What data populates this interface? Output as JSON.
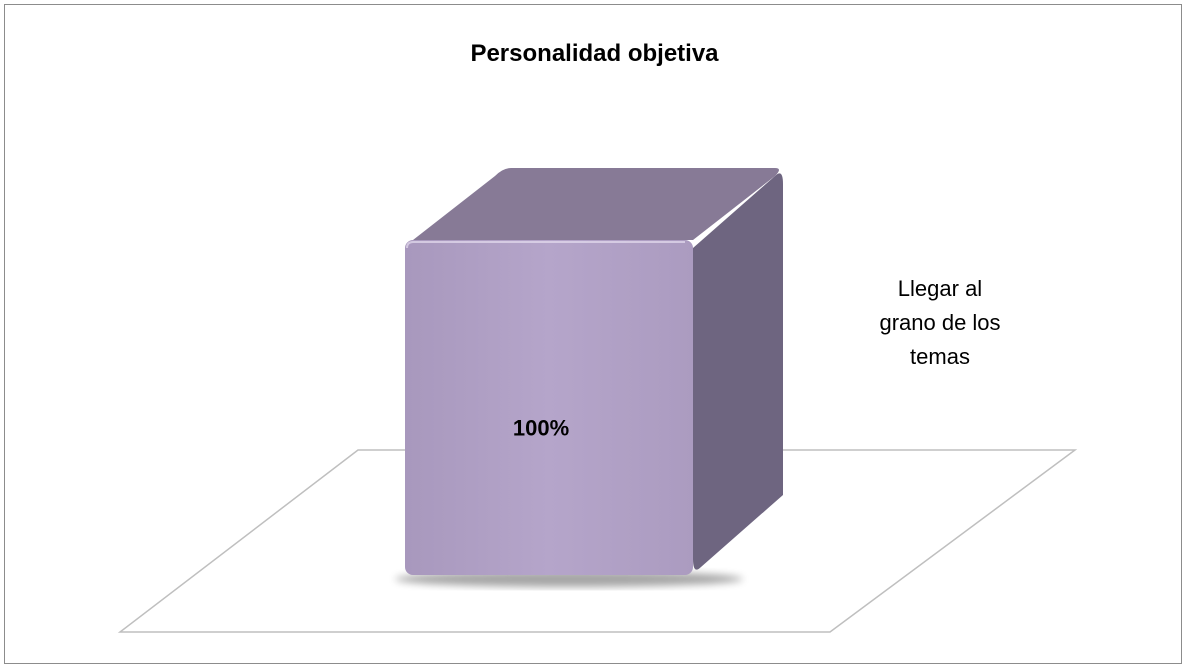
{
  "chart_data": {
    "type": "bar",
    "title": "Personalidad objetiva",
    "categories": [
      "Llegar al grano de los temas"
    ],
    "series": [
      {
        "name": "Llegar al grano de los temas",
        "values": [
          100
        ],
        "data_labels": [
          "100%"
        ]
      }
    ],
    "legend_text": "Llegar al\ngrano de los\ntemas",
    "ylim": [
      0,
      100
    ],
    "legend_position": "right",
    "grid": false,
    "colors": {
      "bar_front": "#b3a2c8",
      "bar_top": "#877a96",
      "bar_side": "#6e6580",
      "floor_stroke": "#bfbfbf"
    }
  }
}
